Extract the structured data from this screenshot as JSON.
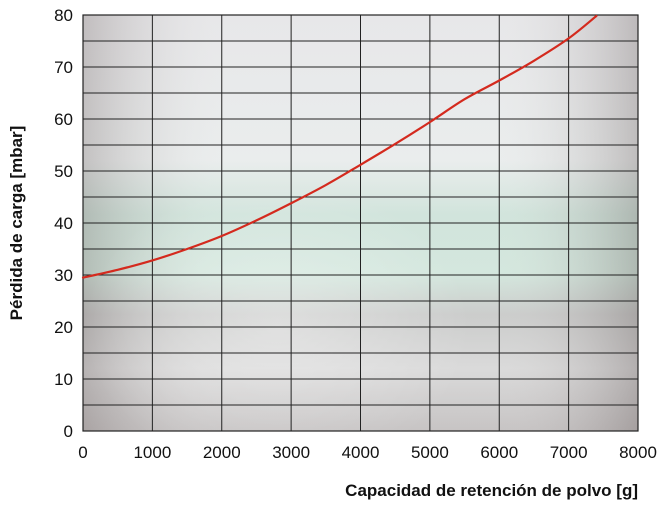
{
  "chart_data": {
    "type": "line",
    "xlabel": "Capacidad de retención de polvo [g]",
    "ylabel": "Pérdida de carga [mbar]",
    "xlim": [
      0,
      8000
    ],
    "ylim": [
      0,
      80
    ],
    "x_ticks": [
      0,
      1000,
      2000,
      3000,
      4000,
      5000,
      6000,
      7000,
      8000
    ],
    "y_ticks": [
      0,
      10,
      20,
      30,
      40,
      50,
      60,
      70,
      80
    ],
    "x_minor_step": 1000,
    "y_minor_step": 5,
    "grid": true,
    "legend": "none",
    "series": [
      {
        "color": "#d42a1e",
        "x": [
          0,
          500,
          1000,
          1500,
          2000,
          2500,
          3000,
          3500,
          4000,
          4500,
          5000,
          5500,
          6000,
          6500,
          7000,
          7400
        ],
        "y": [
          29.5,
          31.0,
          32.8,
          35.0,
          37.5,
          40.5,
          43.8,
          47.3,
          51.2,
          55.2,
          59.4,
          63.8,
          67.4,
          71.2,
          75.5,
          79.8
        ]
      }
    ]
  }
}
